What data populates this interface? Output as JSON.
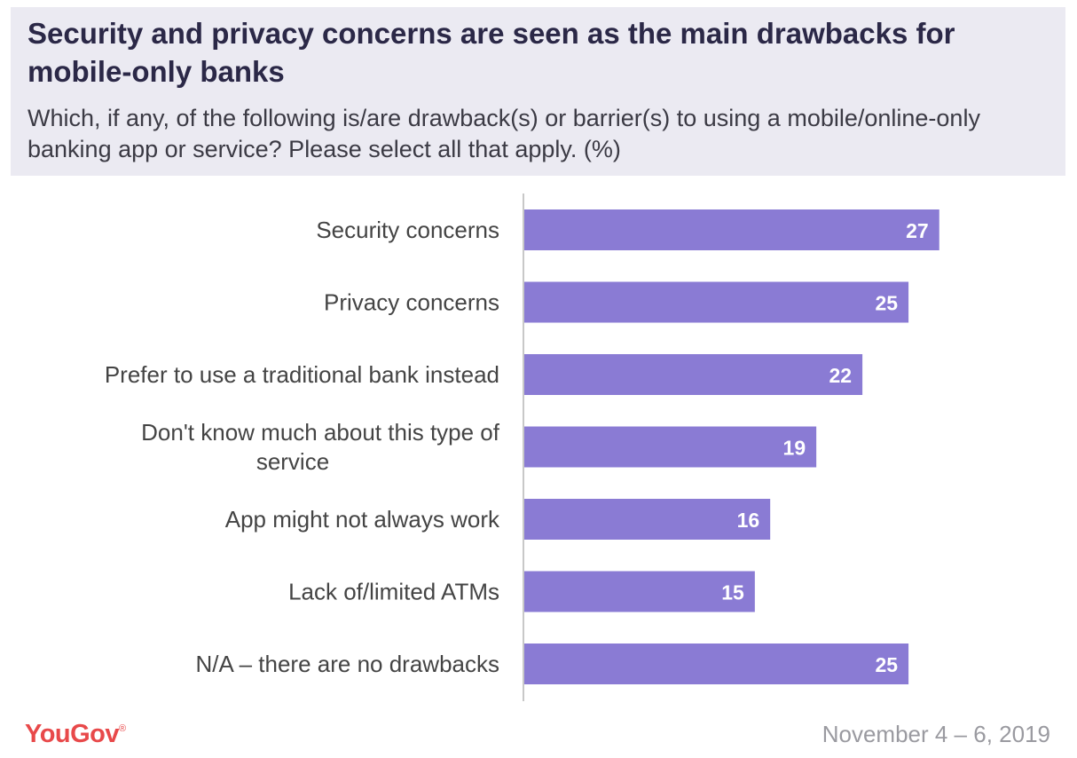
{
  "header": {
    "title": "Security and privacy concerns are seen as the main drawbacks for mobile-only banks",
    "subtitle": "Which, if any, of the following is/are drawback(s) or barrier(s) to using a mobile/online-only  banking app or service? Please select all that apply. (%)"
  },
  "footer": {
    "brand": "YouGov",
    "date": "November 4 – 6, 2019"
  },
  "colors": {
    "bar": "#8a7bd4",
    "axis": "#c8c8c8",
    "label_text": "#444444",
    "value_text": "#ffffff"
  },
  "chart_data": {
    "type": "bar",
    "orientation": "horizontal",
    "title": "Security and privacy concerns are seen as the main drawbacks for mobile-only banks",
    "xlabel": "",
    "ylabel": "",
    "unit": "%",
    "xlim": [
      0,
      34
    ],
    "grid": false,
    "categories": [
      "Security concerns",
      "Privacy concerns",
      "Prefer to use a traditional bank instead",
      "Don't know much about this type of service",
      "App might not always work",
      "Lack of/limited ATMs",
      "N/A – there are no drawbacks"
    ],
    "category_lines": [
      [
        "Security concerns"
      ],
      [
        "Privacy concerns"
      ],
      [
        "Prefer to use a traditional bank instead"
      ],
      [
        "Don't know much about this type of",
        "service"
      ],
      [
        "App might not always work"
      ],
      [
        "Lack of/limited ATMs"
      ],
      [
        "N/A – there are no drawbacks"
      ]
    ],
    "values": [
      27,
      25,
      22,
      19,
      16,
      15,
      25
    ]
  }
}
